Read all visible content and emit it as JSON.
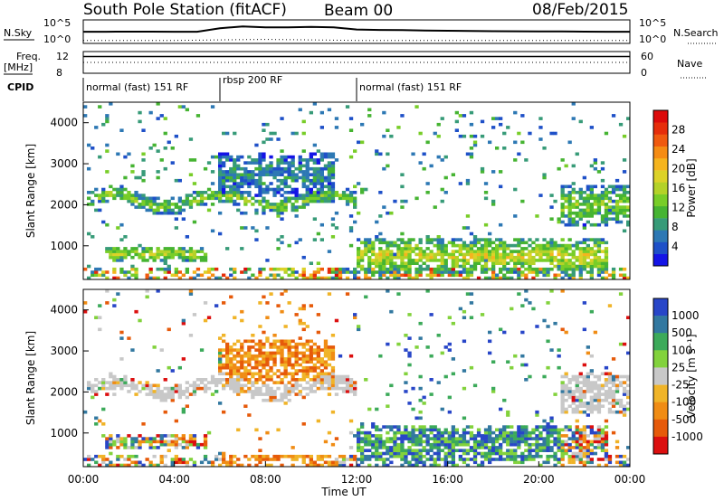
{
  "header": {
    "station": "South Pole Station (fitACF)",
    "beam": "Beam 00",
    "date": "08/Feb/2015"
  },
  "chart_data": [
    {
      "type": "line",
      "panel": "noise",
      "left_label": "N.Sky",
      "right_label": "N.Search",
      "left_ticks": [
        "10^5",
        "10^0"
      ],
      "right_ticks": [
        "10^5",
        "10^0"
      ],
      "scale": "log",
      "ylim": [
        1,
        100000
      ],
      "series": [
        {
          "name": "N.Sky",
          "style": "solid",
          "x": [
            0,
            1,
            2,
            3,
            4,
            5,
            6,
            7,
            8,
            9,
            10,
            11,
            12,
            13,
            14,
            15,
            16,
            17,
            18,
            19,
            20,
            21,
            22,
            23,
            24
          ],
          "y": [
            300,
            300,
            320,
            310,
            300,
            300,
            2000,
            5000,
            3000,
            3000,
            4000,
            3000,
            1000,
            800,
            700,
            600,
            500,
            450,
            400,
            380,
            360,
            340,
            320,
            300,
            300
          ]
        },
        {
          "name": "N.Search",
          "style": "dotted",
          "x": [
            0,
            2,
            4,
            6,
            8,
            10,
            12,
            14,
            16,
            18,
            20,
            22,
            24
          ],
          "y": [
            3,
            3,
            3,
            4,
            5,
            4,
            3,
            3,
            3,
            3,
            3,
            3,
            3
          ]
        }
      ]
    },
    {
      "type": "line",
      "panel": "frequency",
      "left_label": "Freq. [MHz]",
      "right_label": "Nave",
      "left_ticks": [
        "12",
        "8"
      ],
      "right_ticks": [
        "60",
        "0"
      ],
      "series": [
        {
          "name": "Freq. [MHz]",
          "style": "solid",
          "x": [
            0,
            24
          ],
          "y": [
            12.1,
            12.1
          ]
        },
        {
          "name": "Nave",
          "style": "dotted",
          "x": [
            0,
            24
          ],
          "y": [
            40,
            40
          ]
        }
      ]
    },
    {
      "type": "table",
      "panel": "cpid",
      "label": "CPID",
      "segments": [
        {
          "start": 0,
          "end": 6,
          "name": "normal (fast) 151 RF"
        },
        {
          "start": 6,
          "end": 12,
          "name": "rbsp 200 RF"
        },
        {
          "start": 12,
          "end": 24,
          "name": "normal (fast) 151 RF"
        }
      ]
    },
    {
      "type": "heatmap",
      "panel": "power",
      "ylabel": "Slant Range [km]",
      "xlim": [
        0,
        24
      ],
      "ylim": [
        180,
        4500
      ],
      "yticks": [
        1000,
        2000,
        3000,
        4000
      ],
      "colorbar": {
        "label": "Power [dB]",
        "min": 0,
        "max": 32,
        "ticks": [
          "4",
          "8",
          "12",
          "16",
          "20",
          "24",
          "28"
        ],
        "colors": [
          "#1414e6",
          "#1e50c8",
          "#2d78b4",
          "#379b78",
          "#46b432",
          "#78cd28",
          "#b4d228",
          "#dcd228",
          "#f5b41e",
          "#f58c14",
          "#f05a0f",
          "#e62d0a",
          "#dc0a0a"
        ]
      },
      "features": [
        {
          "t0": 0.1,
          "t1": 12.0,
          "r0": 1900,
          "r1": 2300,
          "level": 14,
          "desc": "arc"
        },
        {
          "t0": 1.0,
          "t1": 5.5,
          "r0": 600,
          "r1": 1000,
          "level": 16
        },
        {
          "t0": 6.0,
          "t1": 11.0,
          "r0": 2200,
          "r1": 3300,
          "level": 8
        },
        {
          "t0": 12.0,
          "t1": 23.0,
          "r0": 300,
          "r1": 1200,
          "level": 18
        },
        {
          "t0": 21.0,
          "t1": 24.0,
          "r0": 1500,
          "r1": 2500,
          "level": 14
        }
      ]
    },
    {
      "type": "heatmap",
      "panel": "velocity",
      "xlabel": "Time UT",
      "ylabel": "Slant Range [km]",
      "xlim": [
        0,
        24
      ],
      "ylim": [
        180,
        4500
      ],
      "xticks": [
        "00:00",
        "04:00",
        "08:00",
        "12:00",
        "16:00",
        "20:00",
        "00:00"
      ],
      "yticks": [
        1000,
        2000,
        3000,
        4000
      ],
      "colorbar": {
        "label": "Velocity [m s⁻¹]",
        "ticks": [
          "1000",
          "500",
          "100",
          "25",
          "-25",
          "-100",
          "-500",
          "-1000"
        ],
        "colors": [
          "#2846c8",
          "#3278a0",
          "#3caa5a",
          "#82d23c",
          "#c8c8c8",
          "#f0b428",
          "#f08c14",
          "#e65a0a",
          "#dc0f0f"
        ]
      },
      "ground_scatter_color": "#c8c8c8"
    }
  ]
}
